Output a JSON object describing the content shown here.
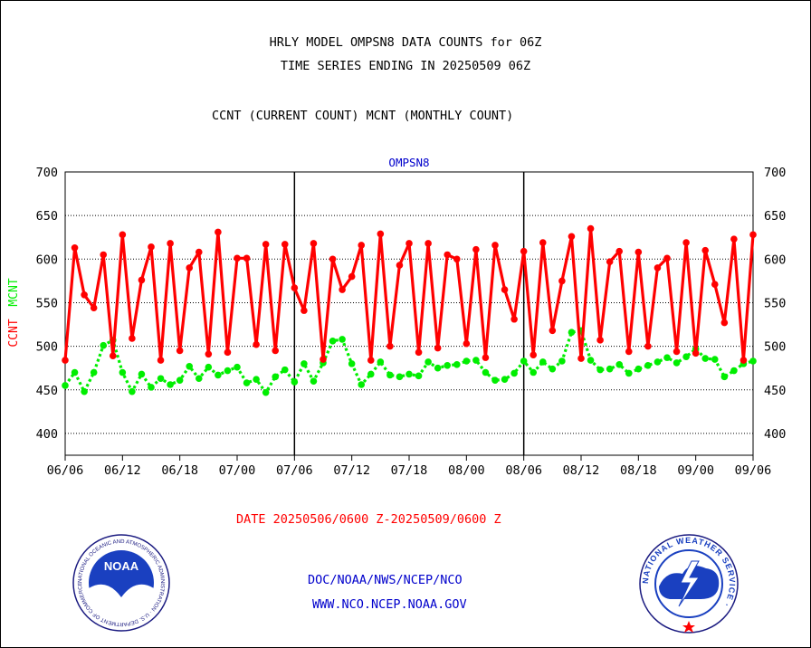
{
  "header": {
    "title_line1": "HRLY MODEL OMPSN8 DATA COUNTS for 06Z",
    "title_line2": "TIME SERIES ENDING IN 20250509 06Z",
    "subtitle": "CCNT (CURRENT COUNT) MCNT (MONTHLY COUNT)"
  },
  "chart_data": {
    "type": "line",
    "title": "OMPSN8",
    "ylabel_ccnt": "CCNT",
    "ylabel_mcnt": "MCNT",
    "ylim": [
      375,
      700
    ],
    "yticks": [
      400,
      450,
      500,
      550,
      600,
      650,
      700
    ],
    "x_tick_labels": [
      "06/06",
      "06/12",
      "06/18",
      "07/00",
      "07/06",
      "07/12",
      "07/18",
      "08/00",
      "08/06",
      "08/12",
      "08/18",
      "09/00",
      "09/06"
    ],
    "grid": true,
    "colors": {
      "ccnt": "#ff0000",
      "mcnt": "#00ee00",
      "axis": "#000000",
      "title": "#0000cc"
    },
    "series": [
      {
        "name": "CCNT",
        "values": [
          484,
          613,
          559,
          544,
          605,
          489,
          628,
          509,
          576,
          614,
          484,
          618,
          495,
          590,
          608,
          491,
          631,
          493,
          601,
          601,
          502,
          617,
          495,
          617,
          567,
          541,
          618,
          485,
          600,
          565,
          580,
          616,
          484,
          629,
          500,
          593,
          618,
          493,
          618,
          498,
          605,
          600,
          503,
          611,
          487,
          616,
          565,
          531,
          609,
          490,
          619,
          518,
          575,
          626,
          486,
          635,
          507,
          597,
          609,
          494,
          608,
          500,
          590,
          601,
          494,
          619,
          492,
          610,
          571,
          527,
          623,
          484,
          628
        ]
      },
      {
        "name": "MCNT",
        "values": [
          455,
          470,
          448,
          470,
          501,
          507,
          470,
          448,
          468,
          453,
          463,
          456,
          461,
          477,
          463,
          476,
          467,
          472,
          476,
          458,
          462,
          447,
          465,
          473,
          459,
          480,
          460,
          481,
          506,
          508,
          480,
          456,
          468,
          482,
          467,
          465,
          468,
          466,
          482,
          475,
          478,
          479,
          483,
          484,
          470,
          461,
          462,
          469,
          483,
          470,
          482,
          474,
          483,
          516,
          518,
          484,
          473,
          474,
          479,
          469,
          474,
          478,
          482,
          487,
          481,
          488,
          497,
          486,
          485,
          465,
          472,
          480,
          483
        ]
      }
    ]
  },
  "footer": {
    "date_range": "DATE 20250506/0600 Z-20250509/0600 Z",
    "org_path": "DOC/NOAA/NWS/NCEP/NCO",
    "website": "WWW.NCO.NCEP.NOAA.GOV"
  },
  "logos": {
    "noaa_text": "NOAA",
    "noaa_ring": "NATIONAL OCEANIC AND ATMOSPHERIC ADMINISTRATION · U.S. DEPARTMENT OF COMMERCE ·",
    "nws_ring": "NATIONAL WEATHER SERVICE ·"
  }
}
